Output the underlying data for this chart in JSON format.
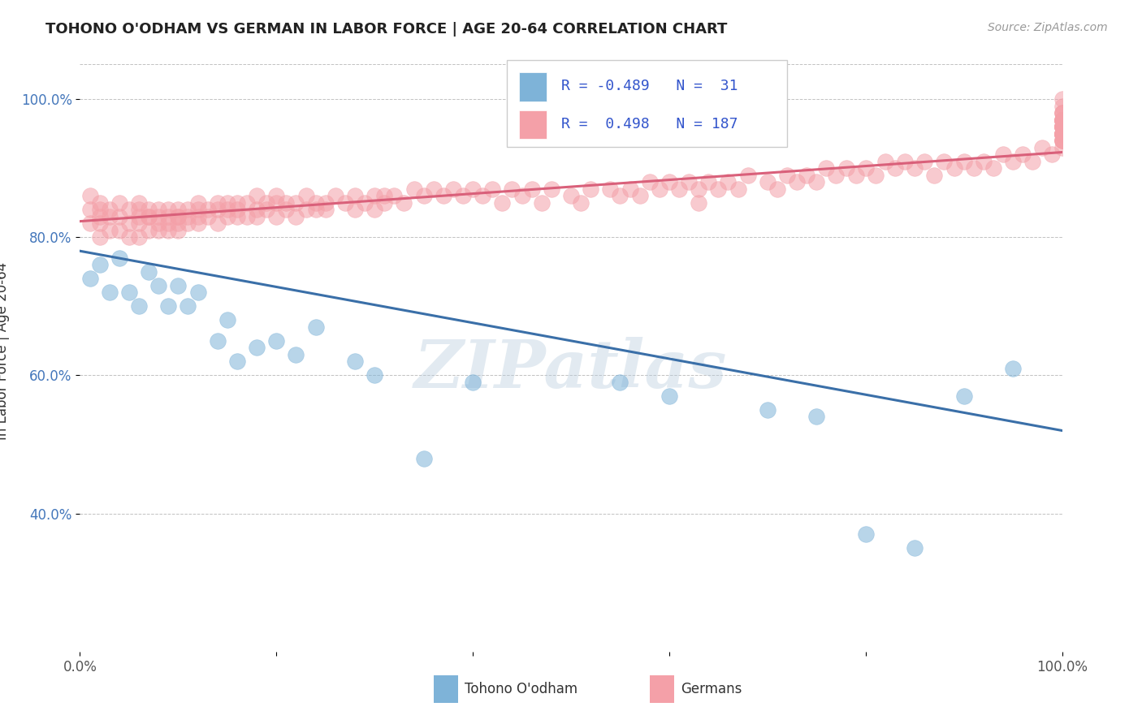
{
  "title": "TOHONO O'ODHAM VS GERMAN IN LABOR FORCE | AGE 20-64 CORRELATION CHART",
  "source_text": "Source: ZipAtlas.com",
  "ylabel": "In Labor Force | Age 20-64",
  "xlim": [
    0.0,
    1.0
  ],
  "ylim": [
    0.2,
    1.07
  ],
  "y_ticks": [
    0.4,
    0.6,
    0.8,
    1.0
  ],
  "y_tick_labels": [
    "40.0%",
    "60.0%",
    "80.0%",
    "100.0%"
  ],
  "watermark": "ZIPatlas",
  "legend_label1": "Tohono O'odham",
  "legend_label2": "Germans",
  "r1": -0.489,
  "n1": 31,
  "r2": 0.498,
  "n2": 187,
  "blue_color": "#7EB3D8",
  "pink_color": "#F4A0A8",
  "blue_line_color": "#3A6FA8",
  "pink_line_color": "#D9607A",
  "blue_line_x0": 0.0,
  "blue_line_y0": 0.78,
  "blue_line_x1": 1.0,
  "blue_line_y1": 0.52,
  "pink_line_x0": 0.0,
  "pink_line_y0": 0.823,
  "pink_line_x1": 1.0,
  "pink_line_y1": 0.923,
  "blue_x": [
    0.01,
    0.02,
    0.03,
    0.04,
    0.05,
    0.06,
    0.07,
    0.08,
    0.09,
    0.1,
    0.11,
    0.12,
    0.14,
    0.15,
    0.16,
    0.18,
    0.2,
    0.22,
    0.24,
    0.28,
    0.3,
    0.35,
    0.4,
    0.55,
    0.6,
    0.7,
    0.75,
    0.8,
    0.85,
    0.9,
    0.95
  ],
  "blue_y": [
    0.74,
    0.76,
    0.72,
    0.77,
    0.72,
    0.7,
    0.75,
    0.73,
    0.7,
    0.73,
    0.7,
    0.72,
    0.65,
    0.68,
    0.62,
    0.64,
    0.65,
    0.63,
    0.67,
    0.62,
    0.6,
    0.48,
    0.59,
    0.59,
    0.57,
    0.55,
    0.54,
    0.37,
    0.35,
    0.57,
    0.61
  ],
  "pink_x": [
    0.01,
    0.01,
    0.01,
    0.02,
    0.02,
    0.02,
    0.02,
    0.02,
    0.03,
    0.03,
    0.03,
    0.04,
    0.04,
    0.04,
    0.05,
    0.05,
    0.05,
    0.06,
    0.06,
    0.06,
    0.06,
    0.06,
    0.07,
    0.07,
    0.07,
    0.07,
    0.08,
    0.08,
    0.08,
    0.08,
    0.09,
    0.09,
    0.09,
    0.09,
    0.1,
    0.1,
    0.1,
    0.1,
    0.1,
    0.11,
    0.11,
    0.11,
    0.12,
    0.12,
    0.12,
    0.12,
    0.13,
    0.13,
    0.14,
    0.14,
    0.14,
    0.15,
    0.15,
    0.15,
    0.16,
    0.16,
    0.16,
    0.17,
    0.17,
    0.18,
    0.18,
    0.18,
    0.19,
    0.19,
    0.2,
    0.2,
    0.2,
    0.21,
    0.21,
    0.22,
    0.22,
    0.23,
    0.23,
    0.24,
    0.24,
    0.25,
    0.25,
    0.26,
    0.27,
    0.28,
    0.28,
    0.29,
    0.3,
    0.3,
    0.31,
    0.31,
    0.32,
    0.33,
    0.34,
    0.35,
    0.36,
    0.37,
    0.38,
    0.39,
    0.4,
    0.41,
    0.42,
    0.43,
    0.44,
    0.45,
    0.46,
    0.47,
    0.48,
    0.5,
    0.51,
    0.52,
    0.54,
    0.55,
    0.56,
    0.57,
    0.58,
    0.59,
    0.6,
    0.61,
    0.62,
    0.63,
    0.63,
    0.64,
    0.65,
    0.66,
    0.67,
    0.68,
    0.7,
    0.71,
    0.72,
    0.73,
    0.74,
    0.75,
    0.76,
    0.77,
    0.78,
    0.79,
    0.8,
    0.81,
    0.82,
    0.83,
    0.84,
    0.85,
    0.86,
    0.87,
    0.88,
    0.89,
    0.9,
    0.91,
    0.92,
    0.93,
    0.94,
    0.95,
    0.96,
    0.97,
    0.98,
    0.99,
    1.0,
    1.0,
    1.0,
    1.0,
    1.0,
    1.0,
    1.0,
    1.0,
    1.0,
    1.0,
    1.0,
    1.0,
    1.0,
    1.0,
    1.0,
    1.0,
    1.0,
    1.0,
    1.0,
    1.0,
    1.0,
    1.0,
    1.0,
    1.0,
    1.0,
    1.0,
    1.0,
    1.0,
    1.0,
    1.0,
    1.0,
    1.0,
    1.0,
    1.0
  ],
  "pink_y": [
    0.84,
    0.82,
    0.86,
    0.84,
    0.82,
    0.8,
    0.83,
    0.85,
    0.83,
    0.81,
    0.84,
    0.83,
    0.81,
    0.85,
    0.82,
    0.84,
    0.8,
    0.84,
    0.82,
    0.8,
    0.83,
    0.85,
    0.83,
    0.81,
    0.84,
    0.83,
    0.82,
    0.84,
    0.81,
    0.83,
    0.82,
    0.84,
    0.81,
    0.83,
    0.83,
    0.81,
    0.84,
    0.82,
    0.83,
    0.84,
    0.82,
    0.83,
    0.85,
    0.83,
    0.84,
    0.82,
    0.84,
    0.83,
    0.84,
    0.82,
    0.85,
    0.83,
    0.85,
    0.84,
    0.83,
    0.85,
    0.84,
    0.85,
    0.83,
    0.84,
    0.86,
    0.83,
    0.85,
    0.84,
    0.85,
    0.83,
    0.86,
    0.84,
    0.85,
    0.85,
    0.83,
    0.84,
    0.86,
    0.84,
    0.85,
    0.85,
    0.84,
    0.86,
    0.85,
    0.86,
    0.84,
    0.85,
    0.86,
    0.84,
    0.86,
    0.85,
    0.86,
    0.85,
    0.87,
    0.86,
    0.87,
    0.86,
    0.87,
    0.86,
    0.87,
    0.86,
    0.87,
    0.85,
    0.87,
    0.86,
    0.87,
    0.85,
    0.87,
    0.86,
    0.85,
    0.87,
    0.87,
    0.86,
    0.87,
    0.86,
    0.88,
    0.87,
    0.88,
    0.87,
    0.88,
    0.87,
    0.85,
    0.88,
    0.87,
    0.88,
    0.87,
    0.89,
    0.88,
    0.87,
    0.89,
    0.88,
    0.89,
    0.88,
    0.9,
    0.89,
    0.9,
    0.89,
    0.9,
    0.89,
    0.91,
    0.9,
    0.91,
    0.9,
    0.91,
    0.89,
    0.91,
    0.9,
    0.91,
    0.9,
    0.91,
    0.9,
    0.92,
    0.91,
    0.92,
    0.91,
    0.93,
    0.92,
    0.97,
    0.99,
    1.0,
    0.98,
    0.97,
    0.96,
    0.95,
    0.98,
    0.97,
    0.96,
    0.97,
    0.96,
    0.98,
    0.97,
    0.96,
    0.97,
    0.95,
    0.96,
    0.97,
    0.95,
    0.96,
    0.95,
    0.96,
    0.95,
    0.96,
    0.94,
    0.95,
    0.94,
    0.95,
    0.94,
    0.95,
    0.94,
    0.95,
    0.93
  ]
}
